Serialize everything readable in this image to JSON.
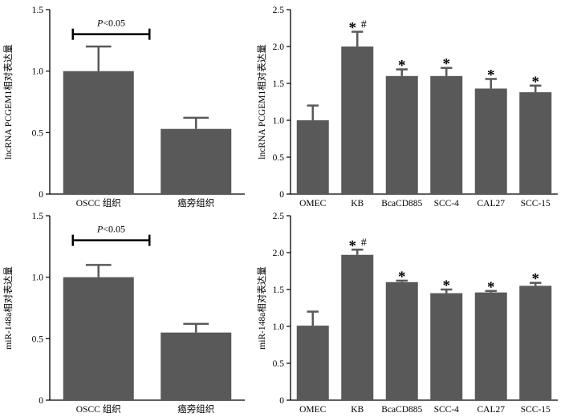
{
  "chart_data": [
    {
      "type": "bar",
      "ylabel": "lncRNA PCGEM1相对表达量",
      "categories": [
        "OSCC 组织",
        "癌旁组织"
      ],
      "values": [
        1.0,
        0.53
      ],
      "errors": [
        0.2,
        0.09
      ],
      "ylim": [
        0,
        1.5
      ],
      "yticks": [
        "0",
        "0.5",
        "1.0",
        "1.5"
      ],
      "ytick_values": [
        0,
        0.5,
        1.0,
        1.5
      ],
      "bar_color": "#595959",
      "marks": [
        "",
        ""
      ],
      "comparison": {
        "label": "P<0.05",
        "from": 0,
        "to": 1,
        "y": 1.3
      }
    },
    {
      "type": "bar",
      "ylabel": "lncRNA PCGEM1相对表达量",
      "categories": [
        "OMEC",
        "KB",
        "BcaCD885",
        "SCC-4",
        "CAL27",
        "SCC-15"
      ],
      "values": [
        1.0,
        2.0,
        1.6,
        1.6,
        1.43,
        1.38
      ],
      "errors": [
        0.2,
        0.2,
        0.09,
        0.11,
        0.13,
        0.09
      ],
      "ylim": [
        0,
        2.5
      ],
      "yticks": [
        "0",
        "0.5",
        "1.0",
        "1.5",
        "2.0",
        "2.5"
      ],
      "ytick_values": [
        0,
        0.5,
        1.0,
        1.5,
        2.0,
        2.5
      ],
      "bar_color": "#595959",
      "marks": [
        "",
        "*#",
        "*",
        "*",
        "*",
        "*"
      ]
    },
    {
      "type": "bar",
      "ylabel": "miR-148a相对表达量",
      "categories": [
        "OSCC 组织",
        "癌旁组织"
      ],
      "values": [
        1.0,
        0.55
      ],
      "errors": [
        0.1,
        0.07
      ],
      "ylim": [
        0,
        1.5
      ],
      "yticks": [
        "0",
        "0.5",
        "1.0",
        "1.5"
      ],
      "ytick_values": [
        0,
        0.5,
        1.0,
        1.5
      ],
      "bar_color": "#595959",
      "marks": [
        "",
        ""
      ],
      "comparison": {
        "label": "P<0.05",
        "from": 0,
        "to": 1,
        "y": 1.3
      }
    },
    {
      "type": "bar",
      "ylabel": "miR-148a相对表达量",
      "categories": [
        "OMEC",
        "KB",
        "BcaCD885",
        "SCC-4",
        "CAL27",
        "SCC-15"
      ],
      "values": [
        1.01,
        1.97,
        1.6,
        1.45,
        1.46,
        1.55
      ],
      "errors": [
        0.19,
        0.07,
        0.02,
        0.05,
        0.02,
        0.04
      ],
      "ylim": [
        0,
        2.5
      ],
      "yticks": [
        "0",
        "0.5",
        "1.0",
        "1.5",
        "2.0",
        "2.5"
      ],
      "ytick_values": [
        0,
        0.5,
        1.0,
        1.5,
        2.0,
        2.5
      ],
      "bar_color": "#595959",
      "marks": [
        "",
        "*#",
        "*",
        "*",
        "*",
        "*"
      ]
    }
  ]
}
